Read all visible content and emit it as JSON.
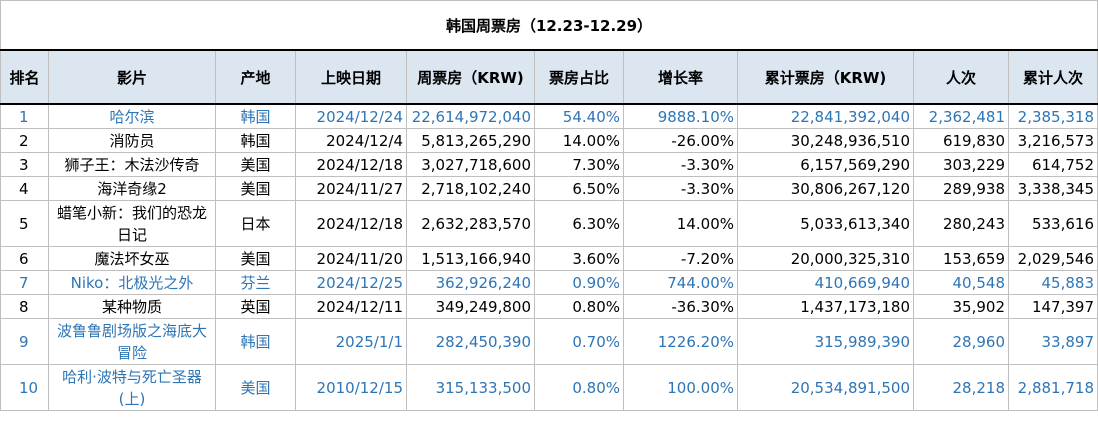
{
  "table": {
    "title": "韩国周票房（12.23-12.29）",
    "headers": [
      "排名",
      "影片",
      "产地",
      "上映日期",
      "周票房（KRW)",
      "票房占比",
      "增长率",
      "累计票房（KRW)",
      "人次",
      "累计人次"
    ],
    "rows": [
      {
        "rank": "1",
        "film": "哈尔滨",
        "origin": "韩国",
        "release": "2024/12/24",
        "weekly": "22,614,972,040",
        "share": "54.40%",
        "growth": "9888.10%",
        "total": "22,841,392,040",
        "admissions": "2,362,481",
        "total_admissions": "2,385,318",
        "highlight": true
      },
      {
        "rank": "2",
        "film": "消防员",
        "origin": "韩国",
        "release": "2024/12/4",
        "weekly": "5,813,265,290",
        "share": "14.00%",
        "growth": "-26.00%",
        "total": "30,248,936,510",
        "admissions": "619,830",
        "total_admissions": "3,216,573",
        "highlight": false
      },
      {
        "rank": "3",
        "film": "狮子王：木法沙传奇",
        "origin": "美国",
        "release": "2024/12/18",
        "weekly": "3,027,718,600",
        "share": "7.30%",
        "growth": "-3.30%",
        "total": "6,157,569,290",
        "admissions": "303,229",
        "total_admissions": "614,752",
        "highlight": false
      },
      {
        "rank": "4",
        "film": "海洋奇缘2",
        "origin": "美国",
        "release": "2024/11/27",
        "weekly": "2,718,102,240",
        "share": "6.50%",
        "growth": "-3.30%",
        "total": "30,806,267,120",
        "admissions": "289,938",
        "total_admissions": "3,338,345",
        "highlight": false
      },
      {
        "rank": "5",
        "film": "蜡笔小新：我们的恐龙日记",
        "origin": "日本",
        "release": "2024/12/18",
        "weekly": "2,632,283,570",
        "share": "6.30%",
        "growth": "14.00%",
        "total": "5,033,613,340",
        "admissions": "280,243",
        "total_admissions": "533,616",
        "highlight": false
      },
      {
        "rank": "6",
        "film": "魔法坏女巫",
        "origin": "美国",
        "release": "2024/11/20",
        "weekly": "1,513,166,940",
        "share": "3.60%",
        "growth": "-7.20%",
        "total": "20,000,325,310",
        "admissions": "153,659",
        "total_admissions": "2,029,546",
        "highlight": false
      },
      {
        "rank": "7",
        "film": "Niko：北极光之外",
        "origin": "芬兰",
        "release": "2024/12/25",
        "weekly": "362,926,240",
        "share": "0.90%",
        "growth": "744.00%",
        "total": "410,669,940",
        "admissions": "40,548",
        "total_admissions": "45,883",
        "highlight": true
      },
      {
        "rank": "8",
        "film": "某种物质",
        "origin": "英国",
        "release": "2024/12/11",
        "weekly": "349,249,800",
        "share": "0.80%",
        "growth": "-36.30%",
        "total": "1,437,173,180",
        "admissions": "35,902",
        "total_admissions": "147,397",
        "highlight": false
      },
      {
        "rank": "9",
        "film": "波鲁鲁剧场版之海底大冒险",
        "origin": "韩国",
        "release": "2025/1/1",
        "weekly": "282,450,390",
        "share": "0.70%",
        "growth": "1226.20%",
        "total": "315,989,390",
        "admissions": "28,960",
        "total_admissions": "33,897",
        "highlight": true
      },
      {
        "rank": "10",
        "film": "哈利·波特与死亡圣器(上)",
        "origin": "美国",
        "release": "2010/12/15",
        "weekly": "315,133,500",
        "share": "0.80%",
        "growth": "100.00%",
        "total": "20,534,891,500",
        "admissions": "28,218",
        "total_admissions": "2,881,718",
        "highlight": true
      }
    ]
  },
  "colors": {
    "header_bg": "#dce6f1",
    "highlight_text": "#2e75b6",
    "grid": "#bfbfbf"
  }
}
